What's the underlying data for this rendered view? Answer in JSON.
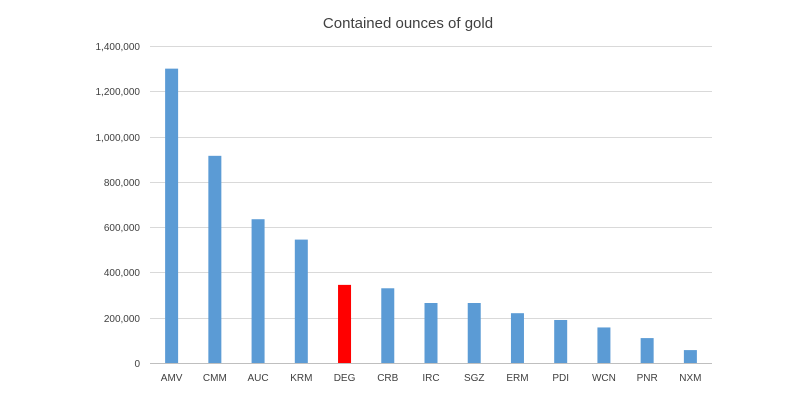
{
  "chart_data": {
    "type": "bar",
    "title": "Contained ounces of gold",
    "xlabel": "",
    "ylabel": "",
    "categories": [
      "AMV",
      "CMM",
      "AUC",
      "KRM",
      "DEG",
      "CRB",
      "IRC",
      "SGZ",
      "ERM",
      "PDI",
      "WCN",
      "PNR",
      "NXM"
    ],
    "values": [
      1300000,
      915000,
      635000,
      545000,
      345000,
      330000,
      265000,
      265000,
      220000,
      190000,
      157000,
      110000,
      57000
    ],
    "ylim": [
      0,
      1400000
    ],
    "yticks": [
      0,
      200000,
      400000,
      600000,
      800000,
      1000000,
      1200000,
      1400000
    ],
    "ytick_labels": [
      "0",
      "200,000",
      "400,000",
      "600,000",
      "800,000",
      "1,000,000",
      "1,200,000",
      "1,400,000"
    ],
    "grid": true,
    "legend": "none",
    "bar_color": "#5b9bd5",
    "highlight_category": "DEG",
    "highlight_color": "#ff0000"
  }
}
